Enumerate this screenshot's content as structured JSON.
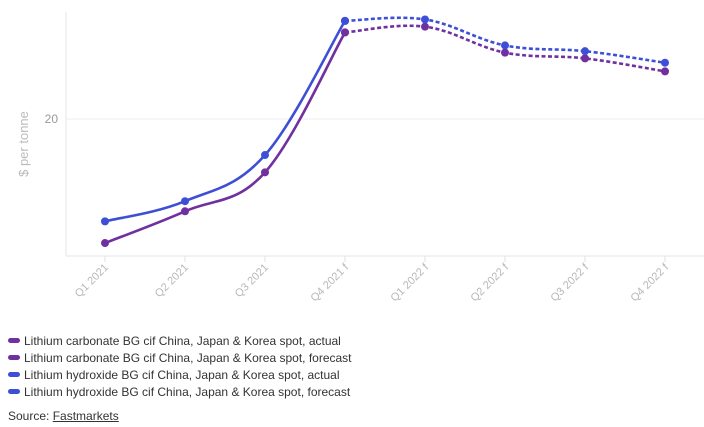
{
  "chart_data": {
    "type": "line",
    "categories": [
      "Q1 2021",
      "Q2 2021",
      "Q3 2021",
      "Q4 2021 f",
      "Q1 2022 f",
      "Q2 2022 f",
      "Q3 2022 f",
      "Q4 2022 f"
    ],
    "ylabel": "$ per tonne",
    "yticks": [
      20
    ],
    "ylim": [
      10.5,
      27
    ],
    "grid": true,
    "series": [
      {
        "name": "Lithium carbonate BG cif China, Japan & Korea spot, actual",
        "color": "#7030a0",
        "style": "solid",
        "values": [
          11.4,
          13.6,
          16.3,
          26.0,
          null,
          null,
          null,
          null
        ]
      },
      {
        "name": "Lithium carbonate BG cif China, Japan & Korea spot, forecast",
        "color": "#7030a0",
        "style": "dashed",
        "values": [
          null,
          null,
          null,
          26.0,
          26.4,
          24.6,
          24.2,
          23.3
        ]
      },
      {
        "name": "Lithium hydroxide BG cif China, Japan & Korea spot, actual",
        "color": "#3d4fd6",
        "style": "solid",
        "values": [
          12.9,
          14.3,
          17.5,
          26.8,
          null,
          null,
          null,
          null
        ]
      },
      {
        "name": "Lithium hydroxide BG cif China, Japan & Korea spot, forecast",
        "color": "#3d4fd6",
        "style": "dashed",
        "values": [
          null,
          null,
          null,
          26.8,
          26.9,
          25.1,
          24.7,
          23.9
        ]
      }
    ]
  },
  "source": {
    "label": "Source: ",
    "link": "Fastmarkets"
  }
}
